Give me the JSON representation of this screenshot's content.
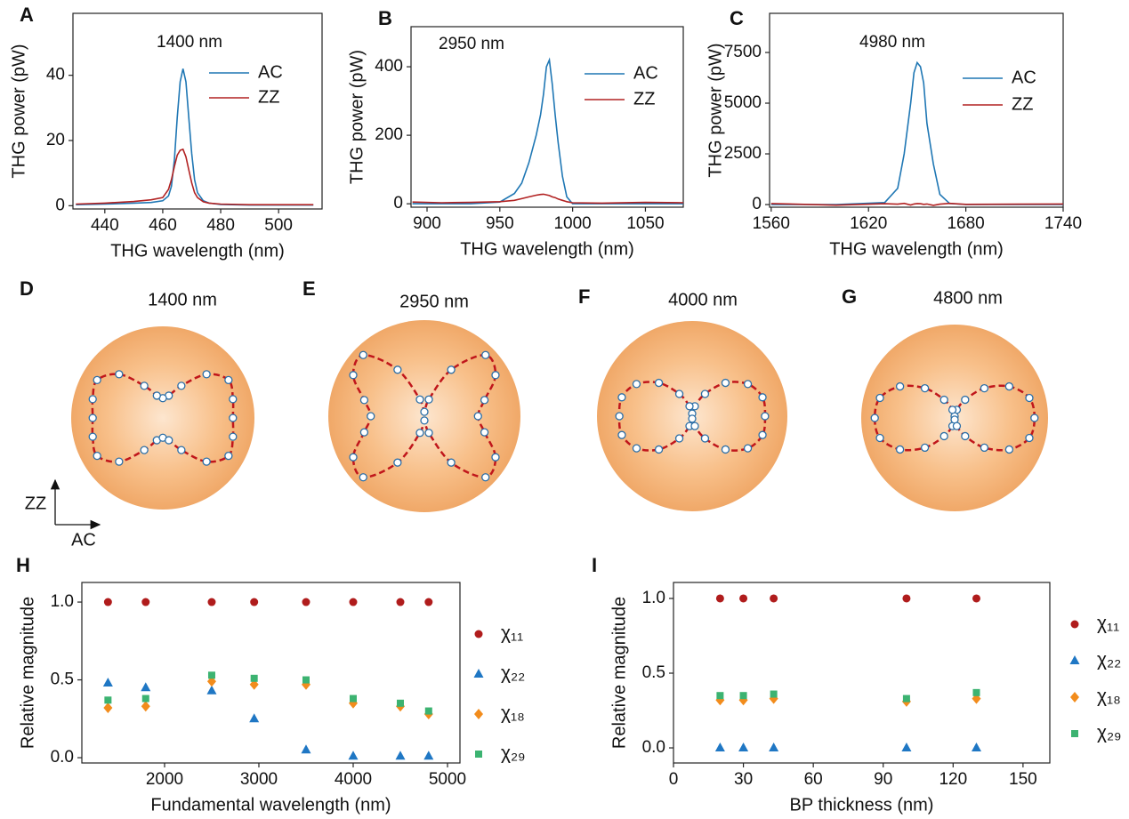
{
  "chart_data": [
    {
      "type": "line",
      "panel": "A",
      "annotation": "1400 nm",
      "xlabel": "THG wavelength (nm)",
      "ylabel": "THG power (pW)",
      "xlim": [
        429,
        515
      ],
      "xticks": [
        440,
        460,
        480,
        500
      ],
      "ylim": [
        -1,
        59
      ],
      "yticks": [
        0,
        20,
        40
      ],
      "x": [
        430,
        440,
        450,
        456,
        460,
        462,
        463,
        464,
        465,
        466,
        467,
        468,
        469,
        470,
        471,
        472,
        474,
        476,
        480,
        490,
        500,
        512
      ],
      "series": [
        {
          "name": "AC",
          "color": "#1f77b4",
          "values": [
            0.3,
            0.5,
            0.8,
            1,
            1.5,
            3,
            6,
            14,
            27,
            38,
            42,
            38,
            27,
            16,
            8,
            4,
            1.5,
            0.8,
            0.4,
            0.2,
            0.2,
            0.2
          ]
        },
        {
          "name": "ZZ",
          "color": "#b22222",
          "values": [
            0.5,
            0.8,
            1.3,
            1.8,
            2.5,
            5,
            8,
            12,
            15.5,
            17,
            17.3,
            15,
            11,
            7,
            4,
            2.5,
            1.2,
            0.8,
            0.5,
            0.3,
            0.3,
            0.3
          ]
        }
      ]
    },
    {
      "type": "line",
      "panel": "B",
      "annotation": "2950 nm",
      "xlabel": "THG wavelength (nm)",
      "ylabel": "THG power (pW)",
      "xlim": [
        889,
        1076
      ],
      "xticks": [
        900,
        950,
        1000,
        1050
      ],
      "ylim": [
        -10,
        517
      ],
      "yticks": [
        0,
        200,
        400
      ],
      "x": [
        890,
        910,
        930,
        950,
        960,
        965,
        970,
        975,
        978,
        980,
        982,
        984,
        986,
        988,
        990,
        993,
        996,
        1000,
        1020,
        1050,
        1076
      ],
      "series": [
        {
          "name": "AC",
          "color": "#1f77b4",
          "values": [
            0,
            0,
            0,
            5,
            30,
            60,
            120,
            200,
            260,
            320,
            400,
            420,
            350,
            260,
            180,
            80,
            20,
            0,
            0,
            0,
            0
          ]
        },
        {
          "name": "ZZ",
          "color": "#b22222",
          "values": [
            5,
            3,
            4,
            6,
            10,
            15,
            20,
            25,
            27,
            28,
            26,
            24,
            20,
            18,
            14,
            10,
            6,
            3,
            2,
            4,
            3
          ]
        }
      ]
    },
    {
      "type": "line",
      "panel": "C",
      "annotation": "4980 nm",
      "xlabel": "THG wavelength (nm)",
      "ylabel": "THG power (pW)",
      "xlim": [
        1559,
        1740
      ],
      "xticks": [
        1560,
        1620,
        1680,
        1740
      ],
      "ylim": [
        -130,
        9430
      ],
      "yticks": [
        0,
        2500,
        5000,
        7500
      ],
      "x": [
        1560,
        1600,
        1630,
        1638,
        1642,
        1646,
        1648,
        1650,
        1652,
        1654,
        1656,
        1660,
        1664,
        1670,
        1680,
        1740
      ],
      "series": [
        {
          "name": "AC",
          "color": "#1f77b4",
          "values": [
            0,
            0,
            100,
            800,
            2500,
            5000,
            6500,
            7000,
            6800,
            6000,
            4000,
            2000,
            500,
            50,
            0,
            0
          ]
        },
        {
          "name": "ZZ",
          "color": "#b22222",
          "values": [
            50,
            -30,
            40,
            20,
            60,
            -20,
            30,
            50,
            40,
            10,
            30,
            -40,
            20,
            60,
            10,
            30
          ]
        }
      ]
    },
    {
      "type": "polar",
      "panel": "D",
      "title": "1400 nm",
      "xlabel": "AC",
      "ylabel": "ZZ",
      "angles": [
        0,
        15,
        30,
        45,
        60,
        75,
        90,
        105,
        120,
        135,
        150,
        165,
        180,
        195,
        210,
        225,
        240,
        255,
        270,
        285,
        300,
        315,
        330,
        345
      ],
      "values": [
        0.85,
        0.88,
        0.92,
        0.75,
        0.45,
        0.28,
        0.24,
        0.28,
        0.45,
        0.75,
        0.92,
        0.88,
        0.85,
        0.88,
        0.92,
        0.75,
        0.45,
        0.28,
        0.24,
        0.28,
        0.45,
        0.75,
        0.92,
        0.88
      ]
    },
    {
      "type": "polar",
      "panel": "E",
      "title": "2950 nm",
      "angles": [
        0,
        15,
        30,
        45,
        60,
        75,
        90,
        105,
        120,
        135,
        150,
        165,
        180,
        195,
        210,
        225,
        240,
        255,
        270,
        285,
        300,
        315,
        330,
        345
      ],
      "values": [
        0.62,
        0.72,
        0.95,
        1.0,
        0.62,
        0.2,
        0.05,
        0.2,
        0.62,
        1.0,
        0.95,
        0.72,
        0.62,
        0.72,
        0.95,
        1.0,
        0.62,
        0.2,
        0.05,
        0.2,
        0.62,
        1.0,
        0.95,
        0.72
      ]
    },
    {
      "type": "polar",
      "panel": "F",
      "title": "4000 nm",
      "angles": [
        0,
        15,
        30,
        45,
        60,
        75,
        90,
        105,
        120,
        135,
        150,
        165,
        180,
        195,
        210,
        225,
        240,
        255,
        270,
        285,
        300,
        315,
        330,
        345
      ],
      "values": [
        0.85,
        0.85,
        0.75,
        0.55,
        0.3,
        0.12,
        0.03,
        0.12,
        0.3,
        0.55,
        0.75,
        0.85,
        0.85,
        0.85,
        0.75,
        0.55,
        0.3,
        0.12,
        0.03,
        0.12,
        0.3,
        0.55,
        0.75,
        0.85
      ]
    },
    {
      "type": "polar",
      "panel": "G",
      "title": "4800 nm",
      "angles": [
        0,
        15,
        30,
        45,
        60,
        75,
        90,
        105,
        120,
        135,
        150,
        165,
        180,
        195,
        210,
        225,
        240,
        255,
        270,
        285,
        300,
        315,
        330,
        345
      ],
      "values": [
        0.95,
        0.92,
        0.75,
        0.5,
        0.25,
        0.1,
        0.02,
        0.1,
        0.25,
        0.5,
        0.75,
        0.92,
        0.95,
        0.92,
        0.75,
        0.5,
        0.25,
        0.1,
        0.02,
        0.1,
        0.25,
        0.5,
        0.75,
        0.92
      ]
    },
    {
      "type": "scatter",
      "panel": "H",
      "xlabel": "Fundamental wavelength (nm)",
      "ylabel": "Relative magnitude",
      "xlim": [
        1123,
        5132
      ],
      "xticks": [
        2000,
        3000,
        4000,
        5000
      ],
      "ylim": [
        -0.034,
        1.126
      ],
      "yticks": [
        {
          "value": 0,
          "label": "0.0"
        },
        0.5,
        {
          "value": 1,
          "label": "1.0"
        }
      ],
      "x": [
        1400,
        1800,
        2500,
        2950,
        3500,
        4000,
        4500,
        4800
      ],
      "series": [
        {
          "name": "χ₁₁",
          "color": "#b01c1c",
          "marker": "circle",
          "values": [
            1,
            1,
            1,
            1,
            1,
            1,
            1,
            1
          ]
        },
        {
          "name": "χ₂₂",
          "color": "#1f77c4",
          "marker": "triangle",
          "values": [
            0.48,
            0.45,
            0.43,
            0.25,
            0.05,
            0.01,
            0.01,
            0.01
          ]
        },
        {
          "name": "χ₁₈",
          "color": "#f28c1c",
          "marker": "diamond",
          "values": [
            0.32,
            0.33,
            0.49,
            0.47,
            0.47,
            0.35,
            0.33,
            0.28
          ]
        },
        {
          "name": "χ₂₉",
          "color": "#3cb371",
          "marker": "square",
          "values": [
            0.37,
            0.38,
            0.53,
            0.51,
            0.5,
            0.38,
            0.35,
            0.3
          ]
        }
      ]
    },
    {
      "type": "scatter",
      "panel": "I",
      "xlabel": "BP thickness (nm)",
      "ylabel": "Relative magnitude",
      "xlim": [
        0,
        161.5
      ],
      "xticks": [
        0,
        30,
        60,
        90,
        120,
        150
      ],
      "ylim": [
        -0.101,
        1.107
      ],
      "yticks": [
        {
          "value": 0,
          "label": "0.0"
        },
        0.5,
        {
          "value": 1,
          "label": "1.0"
        }
      ],
      "x": [
        20,
        30,
        43,
        100,
        130
      ],
      "series": [
        {
          "name": "χ₁₁",
          "color": "#b01c1c",
          "marker": "circle",
          "values": [
            1,
            1,
            1,
            1,
            1
          ]
        },
        {
          "name": "χ₂₂",
          "color": "#1f77c4",
          "marker": "triangle",
          "values": [
            0,
            0,
            0,
            0,
            0
          ]
        },
        {
          "name": "χ₁₈",
          "color": "#f28c1c",
          "marker": "diamond",
          "values": [
            0.32,
            0.32,
            0.33,
            0.31,
            0.33
          ]
        },
        {
          "name": "χ₂₉",
          "color": "#3cb371",
          "marker": "square",
          "values": [
            0.35,
            0.35,
            0.36,
            0.33,
            0.37
          ]
        }
      ]
    }
  ]
}
